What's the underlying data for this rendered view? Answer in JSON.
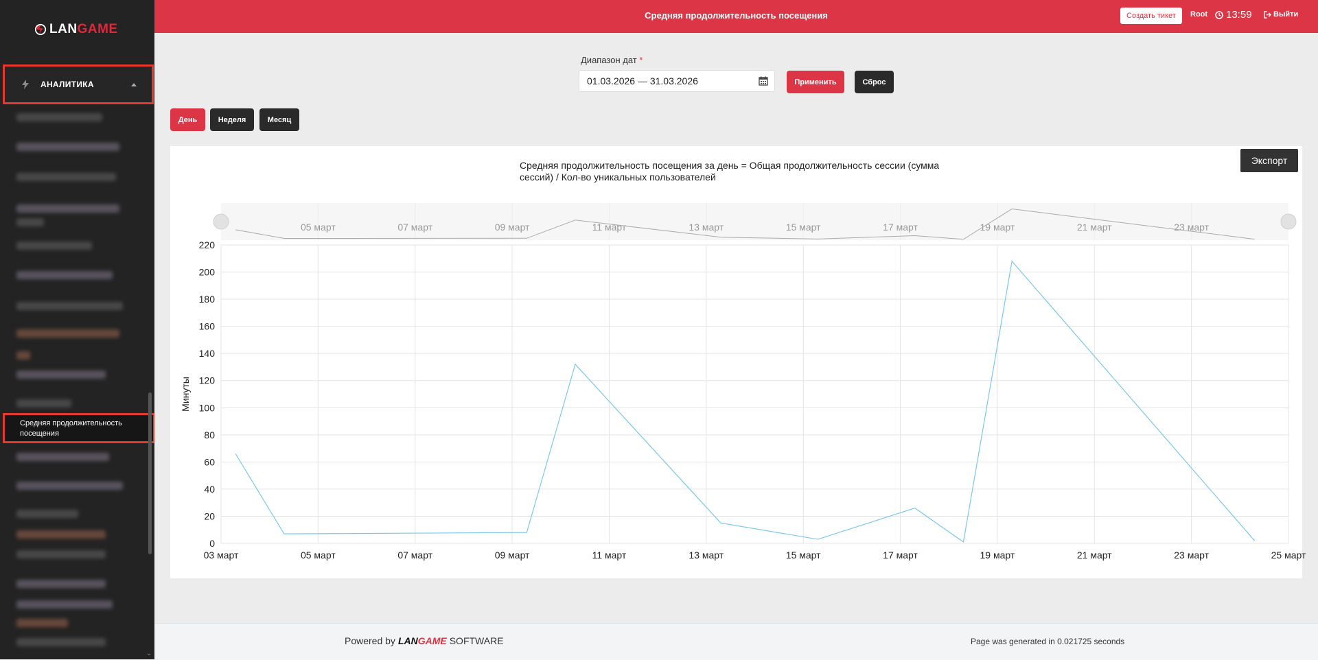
{
  "app": {
    "logo_text_a": "LAN",
    "logo_text_b": "GAME"
  },
  "sidebar": {
    "section_label": "АНАЛИТИКА",
    "active_item_label": "Средняя продолжительность посещения"
  },
  "header": {
    "title": "Средняя продолжительность посещения",
    "ticket_button": "Создать тикет",
    "user": "Root",
    "time": "13:59",
    "logout": "Выйти"
  },
  "filter": {
    "date_label": "Диапазон дат",
    "required_mark": "*",
    "date_value": "01.03.2026 — 31.03.2026",
    "apply": "Применить",
    "reset": "Сброс"
  },
  "period_tabs": [
    "День",
    "Неделя",
    "Месяц"
  ],
  "export_label": "Экспорт",
  "chart_data": {
    "type": "line",
    "title": "Средняя продолжительность посещения за день = Общая продолжительность сессии (сумма сессий) / Кол-во уникальных пользователей",
    "ylabel": "Минуты",
    "xlabel": "",
    "ylim": [
      0,
      220
    ],
    "y_ticks": [
      0,
      20,
      40,
      60,
      80,
      100,
      120,
      140,
      160,
      180,
      200,
      220
    ],
    "x_ticks": [
      "03 март",
      "05 март",
      "07 март",
      "09 март",
      "11 март",
      "13 март",
      "15 март",
      "17 март",
      "19 март",
      "21 март",
      "23 март",
      "25 март"
    ],
    "navigator_ticks": [
      "05 март",
      "07 март",
      "09 март",
      "11 март",
      "13 март",
      "15 март",
      "17 март",
      "19 март",
      "21 март",
      "23 март"
    ],
    "x_start_day": 3,
    "x_end_day": 25,
    "grid": true,
    "color": "#7cc6ea",
    "series": [
      {
        "points": [
          {
            "x": "03.03.2026",
            "y": 66
          },
          {
            "x": "04.03.2026",
            "y": 7
          },
          {
            "x": "09.03.2026",
            "y": 8
          },
          {
            "x": "10.03.2026",
            "y": 132
          },
          {
            "x": "13.03.2026",
            "y": 15
          },
          {
            "x": "15.03.2026",
            "y": 3
          },
          {
            "x": "17.03.2026",
            "y": 26
          },
          {
            "x": "18.03.2026",
            "y": 1
          },
          {
            "x": "19.03.2026",
            "y": 208
          },
          {
            "x": "24.03.2026",
            "y": 2
          }
        ]
      }
    ]
  },
  "footer": {
    "powered_by": "Powered by",
    "brand_a": "LAN",
    "brand_b": "GAME",
    "software": "SOFTWARE",
    "generated": "Page was generated in 0.021725 seconds"
  }
}
